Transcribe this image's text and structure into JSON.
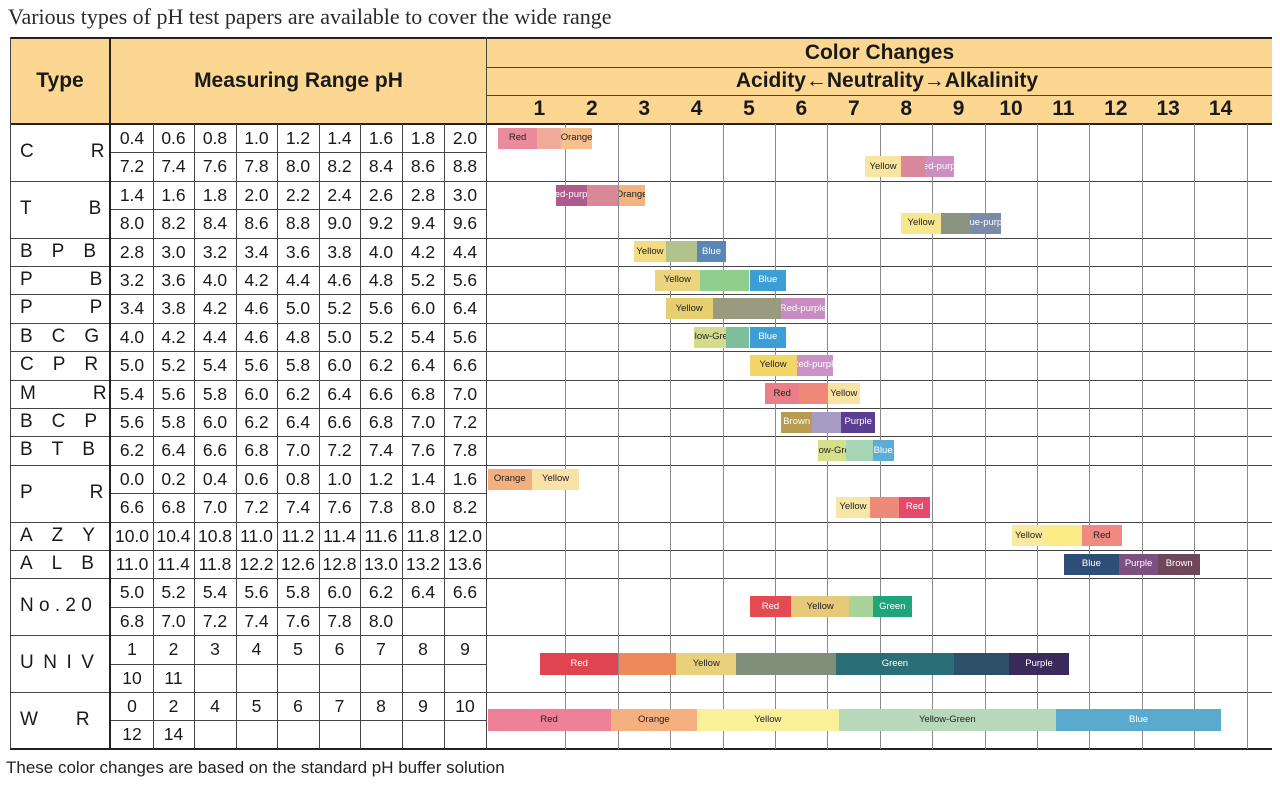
{
  "caption": "Various types of pH test papers are available to cover the wide range",
  "note": "These color changes are based on the standard pH buffer solution",
  "header": {
    "type": "Type",
    "range": "Measuring Range pH",
    "color_changes": "Color Changes",
    "direction": "Acidity←Neutrality→Alkalinity",
    "scale": [
      "1",
      "2",
      "3",
      "4",
      "5",
      "6",
      "7",
      "8",
      "9",
      "10",
      "11",
      "12",
      "13",
      "14"
    ]
  },
  "colors": {
    "header_bg": "#fbd791",
    "red": "#e34a52",
    "red_pink": "#ea7f95",
    "orange": "#f3b07e",
    "yellow": "#f4e08c",
    "red_purple": "#c96a8d",
    "blue": "#3b9fd6",
    "purple": "#4f3a78",
    "green": "#1ea57a",
    "brown": "#aa9845"
  },
  "types": [
    {
      "name": "C   R",
      "rows": [
        [
          "0.4",
          "0.6",
          "0.8",
          "1.0",
          "1.2",
          "1.4",
          "1.6",
          "1.8",
          "2.0"
        ],
        [
          "7.2",
          "7.4",
          "7.6",
          "7.8",
          "8.0",
          "8.2",
          "8.4",
          "8.6",
          "8.8"
        ]
      ]
    },
    {
      "name": "T   B",
      "rows": [
        [
          "1.4",
          "1.6",
          "1.8",
          "2.0",
          "2.2",
          "2.4",
          "2.6",
          "2.8",
          "3.0"
        ],
        [
          "8.0",
          "8.2",
          "8.4",
          "8.6",
          "8.8",
          "9.0",
          "9.2",
          "9.4",
          "9.6"
        ]
      ]
    },
    {
      "name": "B P B",
      "rows": [
        [
          "2.8",
          "3.0",
          "3.2",
          "3.4",
          "3.6",
          "3.8",
          "4.0",
          "4.2",
          "4.4"
        ]
      ]
    },
    {
      "name": "P   B",
      "rows": [
        [
          "3.2",
          "3.6",
          "4.0",
          "4.2",
          "4.4",
          "4.6",
          "4.8",
          "5.2",
          "5.6"
        ]
      ]
    },
    {
      "name": "P   P",
      "rows": [
        [
          "3.4",
          "3.8",
          "4.2",
          "4.6",
          "5.0",
          "5.2",
          "5.6",
          "6.0",
          "6.4"
        ]
      ]
    },
    {
      "name": "B C G",
      "rows": [
        [
          "4.0",
          "4.2",
          "4.4",
          "4.6",
          "4.8",
          "5.0",
          "5.2",
          "5.4",
          "5.6"
        ]
      ]
    },
    {
      "name": "C P R",
      "rows": [
        [
          "5.0",
          "5.2",
          "5.4",
          "5.6",
          "5.8",
          "6.0",
          "6.2",
          "6.4",
          "6.6"
        ]
      ]
    },
    {
      "name": "M   R",
      "rows": [
        [
          "5.4",
          "5.6",
          "5.8",
          "6.0",
          "6.2",
          "6.4",
          "6.6",
          "6.8",
          "7.0"
        ]
      ]
    },
    {
      "name": "B C P",
      "rows": [
        [
          "5.6",
          "5.8",
          "6.0",
          "6.2",
          "6.4",
          "6.6",
          "6.8",
          "7.0",
          "7.2"
        ]
      ]
    },
    {
      "name": "B T B",
      "rows": [
        [
          "6.2",
          "6.4",
          "6.6",
          "6.8",
          "7.0",
          "7.2",
          "7.4",
          "7.6",
          "7.8"
        ]
      ]
    },
    {
      "name": "P   R",
      "rows": [
        [
          "0.0",
          "0.2",
          "0.4",
          "0.6",
          "0.8",
          "1.0",
          "1.2",
          "1.4",
          "1.6"
        ],
        [
          "6.6",
          "6.8",
          "7.0",
          "7.2",
          "7.4",
          "7.6",
          "7.8",
          "8.0",
          "8.2"
        ]
      ]
    },
    {
      "name": "A Z Y",
      "rows": [
        [
          "10.0",
          "10.4",
          "10.8",
          "11.0",
          "11.2",
          "11.4",
          "11.6",
          "11.8",
          "12.0"
        ]
      ]
    },
    {
      "name": "A L B",
      "rows": [
        [
          "11.0",
          "11.4",
          "11.8",
          "12.2",
          "12.6",
          "12.8",
          "13.0",
          "13.2",
          "13.6"
        ]
      ]
    },
    {
      "name": "N o . 2 0",
      "rows": [
        [
          "5.0",
          "5.2",
          "5.4",
          "5.6",
          "5.8",
          "6.0",
          "6.2",
          "6.4",
          "6.6"
        ],
        [
          "6.8",
          "7.0",
          "7.2",
          "7.4",
          "7.6",
          "7.8",
          "8.0",
          "",
          ""
        ]
      ]
    },
    {
      "name": "U N I V",
      "rows": [
        [
          "1",
          "2",
          "3",
          "4",
          "5",
          "6",
          "7",
          "8",
          "9"
        ],
        [
          "10",
          "11",
          "",
          "",
          "",
          "",
          "",
          "",
          ""
        ]
      ]
    },
    {
      "name": "W  R",
      "rows": [
        [
          "0",
          "2",
          "4",
          "5",
          "6",
          "7",
          "8",
          "9",
          "10"
        ],
        [
          "12",
          "14",
          "",
          "",
          "",
          "",
          "",
          "",
          ""
        ]
      ]
    }
  ],
  "bars": [
    {
      "type": 0,
      "line": 0,
      "segs": [
        {
          "ph": [
            0.2,
            0.95
          ],
          "color": "#ea8a9c",
          "label": "Red"
        },
        {
          "ph": [
            0.95,
            1.4
          ],
          "color": "#f0aa9a",
          "label": ""
        },
        {
          "ph": [
            1.4,
            2.0
          ],
          "color": "#f7c08c",
          "label": "Orange"
        }
      ]
    },
    {
      "type": 0,
      "line": 1,
      "segs": [
        {
          "ph": [
            7.2,
            7.9
          ],
          "color": "#f8e5a0",
          "label": "Yellow"
        },
        {
          "ph": [
            7.9,
            8.35
          ],
          "color": "#d9879a",
          "label": ""
        },
        {
          "ph": [
            8.35,
            8.9
          ],
          "color": "#cc8fc0",
          "label": "Red-purple"
        }
      ]
    },
    {
      "type": 1,
      "line": 0,
      "segs": [
        {
          "ph": [
            1.3,
            1.9
          ],
          "color": "#b05a8c",
          "label": "Red-purple"
        },
        {
          "ph": [
            1.9,
            2.5
          ],
          "color": "#d98898",
          "label": ""
        },
        {
          "ph": [
            2.5,
            3.0
          ],
          "color": "#f4b27e",
          "label": "Orange"
        }
      ]
    },
    {
      "type": 1,
      "line": 1,
      "segs": [
        {
          "ph": [
            7.9,
            8.65
          ],
          "color": "#f8e68f",
          "label": "Yellow"
        },
        {
          "ph": [
            8.65,
            9.2
          ],
          "color": "#8c9280",
          "label": ""
        },
        {
          "ph": [
            9.2,
            9.8
          ],
          "color": "#7a8aa8",
          "label": "Blue-purple"
        }
      ]
    },
    {
      "type": 2,
      "line": 0,
      "segs": [
        {
          "ph": [
            2.8,
            3.4
          ],
          "color": "#f1dc82",
          "label": "Yellow"
        },
        {
          "ph": [
            3.4,
            4.0
          ],
          "color": "#b2c28c",
          "label": ""
        },
        {
          "ph": [
            4.0,
            4.55
          ],
          "color": "#5b86b8",
          "label": "Blue"
        }
      ]
    },
    {
      "type": 3,
      "line": 0,
      "segs": [
        {
          "ph": [
            3.2,
            4.05
          ],
          "color": "#ecd47e",
          "label": "Yellow"
        },
        {
          "ph": [
            4.05,
            5.0
          ],
          "color": "#8fce8c",
          "label": ""
        },
        {
          "ph": [
            5.0,
            5.7
          ],
          "color": "#3b9fd6",
          "label": "Blue"
        }
      ]
    },
    {
      "type": 4,
      "line": 0,
      "segs": [
        {
          "ph": [
            3.4,
            4.3
          ],
          "color": "#e6cf6e",
          "label": "Yellow"
        },
        {
          "ph": [
            4.3,
            5.6
          ],
          "color": "#999a7e",
          "label": ""
        },
        {
          "ph": [
            5.6,
            6.45
          ],
          "color": "#c98cc0",
          "label": "Red-purple"
        }
      ]
    },
    {
      "type": 5,
      "line": 0,
      "segs": [
        {
          "ph": [
            3.95,
            4.55
          ],
          "color": "#d4dc8c",
          "label": "Yellow-Green"
        },
        {
          "ph": [
            4.55,
            5.0
          ],
          "color": "#7cbf98",
          "label": ""
        },
        {
          "ph": [
            5.0,
            5.7
          ],
          "color": "#3b9fd6",
          "label": "Blue"
        }
      ]
    },
    {
      "type": 6,
      "line": 0,
      "segs": [
        {
          "ph": [
            5.0,
            5.9
          ],
          "color": "#f3d667",
          "label": "Yellow"
        },
        {
          "ph": [
            5.9,
            6.6
          ],
          "color": "#cc92c6",
          "label": "Red-purple"
        }
      ]
    },
    {
      "type": 7,
      "line": 0,
      "segs": [
        {
          "ph": [
            5.3,
            5.95
          ],
          "color": "#ea7f8a",
          "label": "Red"
        },
        {
          "ph": [
            5.95,
            6.5
          ],
          "color": "#f0887a",
          "label": ""
        },
        {
          "ph": [
            6.5,
            7.1
          ],
          "color": "#f9e3a4",
          "label": "Yellow"
        }
      ]
    },
    {
      "type": 8,
      "line": 0,
      "segs": [
        {
          "ph": [
            5.6,
            6.2
          ],
          "color": "#b89b4e",
          "label": "Brown"
        },
        {
          "ph": [
            6.2,
            6.75
          ],
          "color": "#a79dc4",
          "label": ""
        },
        {
          "ph": [
            6.75,
            7.4
          ],
          "color": "#5b3e91",
          "label": "Purple"
        }
      ]
    },
    {
      "type": 9,
      "line": 0,
      "segs": [
        {
          "ph": [
            6.3,
            6.85
          ],
          "color": "#d6e08a",
          "label": "Yellow-Green"
        },
        {
          "ph": [
            6.85,
            7.35
          ],
          "color": "#a6d6b6",
          "label": ""
        },
        {
          "ph": [
            7.35,
            7.75
          ],
          "color": "#5aaed6",
          "label": "Blue"
        }
      ]
    },
    {
      "type": 10,
      "line": 0,
      "segs": [
        {
          "ph": [
            0.0,
            0.85
          ],
          "color": "#f3b07e",
          "label": "Orange"
        },
        {
          "ph": [
            0.85,
            1.75
          ],
          "color": "#f9e1a8",
          "label": "Yellow"
        }
      ]
    },
    {
      "type": 10,
      "line": 1,
      "segs": [
        {
          "ph": [
            6.65,
            7.3
          ],
          "color": "#f8e6a4",
          "label": "Yellow"
        },
        {
          "ph": [
            7.3,
            7.85
          ],
          "color": "#ef8a78",
          "label": ""
        },
        {
          "ph": [
            7.85,
            8.45
          ],
          "color": "#e34a6c",
          "label": "Red"
        }
      ]
    },
    {
      "type": 11,
      "line": 0,
      "segs": [
        {
          "ph": [
            10.0,
            10.65
          ],
          "color": "#fbe9a0",
          "label": "Yellow"
        },
        {
          "ph": [
            10.65,
            11.35
          ],
          "color": "#fbeb85",
          "label": ""
        },
        {
          "ph": [
            11.35,
            12.1
          ],
          "color": "#ef8a80",
          "label": "Red"
        }
      ]
    },
    {
      "type": 12,
      "line": 0,
      "segs": [
        {
          "ph": [
            11.0,
            12.05
          ],
          "color": "#2e4d77",
          "label": "Blue"
        },
        {
          "ph": [
            12.05,
            12.8
          ],
          "color": "#7d5082",
          "label": "Purple"
        },
        {
          "ph": [
            12.8,
            13.6
          ],
          "color": "#6e4858",
          "label": "Brown"
        }
      ]
    },
    {
      "type": 13,
      "line": 0,
      "segs": [
        {
          "ph": [
            5.0,
            5.8
          ],
          "color": "#e34a52",
          "label": "Red"
        },
        {
          "ph": [
            5.8,
            6.9
          ],
          "color": "#e7c97a",
          "label": "Yellow"
        },
        {
          "ph": [
            6.9,
            7.35
          ],
          "color": "#a8d49a",
          "label": ""
        },
        {
          "ph": [
            7.35,
            8.1
          ],
          "color": "#1ea57a",
          "label": "Green"
        }
      ]
    },
    {
      "type": 14,
      "line": 0,
      "segs": [
        {
          "ph": [
            1.0,
            2.5
          ],
          "color": "#e04450",
          "label": "Red"
        },
        {
          "ph": [
            2.5,
            3.6
          ],
          "color": "#ee8a5a",
          "label": ""
        },
        {
          "ph": [
            3.6,
            4.75
          ],
          "color": "#e8d07c",
          "label": "Yellow"
        },
        {
          "ph": [
            4.75,
            6.65
          ],
          "color": "#7f8f7a",
          "label": ""
        },
        {
          "ph": [
            6.65,
            8.9
          ],
          "color": "#2c6e78",
          "label": "Green"
        },
        {
          "ph": [
            8.9,
            9.95
          ],
          "color": "#2c5068",
          "label": ""
        },
        {
          "ph": [
            9.95,
            11.1
          ],
          "color": "#3a2a5c",
          "label": "Purple"
        }
      ]
    },
    {
      "type": 15,
      "line": 0,
      "segs": [
        {
          "ph": [
            0.0,
            2.35
          ],
          "color": "#ee8098",
          "label": "Red"
        },
        {
          "ph": [
            2.35,
            4.0
          ],
          "color": "#f4b07e",
          "label": "Orange"
        },
        {
          "ph": [
            4.0,
            6.7
          ],
          "color": "#fbf09a",
          "label": "Yellow"
        },
        {
          "ph": [
            6.7,
            10.85
          ],
          "color": "#b8d8bc",
          "label": "Yellow-Green"
        },
        {
          "ph": [
            10.85,
            14.0
          ],
          "color": "#5aaacd",
          "label": "Blue"
        }
      ]
    }
  ]
}
